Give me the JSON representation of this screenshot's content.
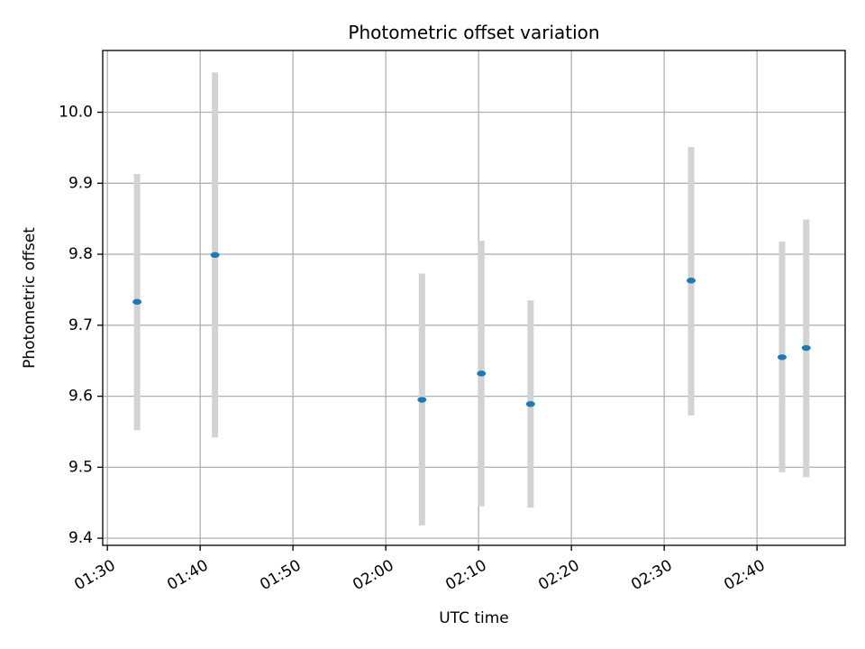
{
  "chart_data": {
    "type": "scatter",
    "title": "Photometric offset variation",
    "xlabel": "UTC time",
    "ylabel": "Photometric offset",
    "grid": true,
    "x_unit": "minutes after 01:30 UTC",
    "xlim": [
      -0.5,
      79.5
    ],
    "ylim": [
      9.39,
      10.087
    ],
    "x_ticks": [
      {
        "value": 0,
        "label": "01:30"
      },
      {
        "value": 10,
        "label": "01:40"
      },
      {
        "value": 20,
        "label": "01:50"
      },
      {
        "value": 30,
        "label": "02:00"
      },
      {
        "value": 40,
        "label": "02:10"
      },
      {
        "value": 50,
        "label": "02:20"
      },
      {
        "value": 60,
        "label": "02:30"
      },
      {
        "value": 70,
        "label": "02:40"
      }
    ],
    "y_ticks": [
      {
        "value": 9.4,
        "label": "9.4"
      },
      {
        "value": 9.5,
        "label": "9.5"
      },
      {
        "value": 9.6,
        "label": "9.6"
      },
      {
        "value": 9.7,
        "label": "9.7"
      },
      {
        "value": 9.8,
        "label": "9.8"
      },
      {
        "value": 9.9,
        "label": "9.9"
      },
      {
        "value": 10.0,
        "label": "10.0"
      }
    ],
    "series": [
      {
        "name": "Photometric offset",
        "point_color": "#1f77b4",
        "errorbar_color": "#d3d3d3",
        "points": [
          {
            "x": 3.2,
            "y": 9.733,
            "err_low": 9.552,
            "err_high": 9.913
          },
          {
            "x": 11.6,
            "y": 9.799,
            "err_low": 9.542,
            "err_high": 10.056
          },
          {
            "x": 33.9,
            "y": 9.595,
            "err_low": 9.418,
            "err_high": 9.773
          },
          {
            "x": 40.3,
            "y": 9.632,
            "err_low": 9.445,
            "err_high": 9.819
          },
          {
            "x": 45.6,
            "y": 9.589,
            "err_low": 9.443,
            "err_high": 9.735
          },
          {
            "x": 62.9,
            "y": 9.763,
            "err_low": 9.573,
            "err_high": 9.951
          },
          {
            "x": 72.7,
            "y": 9.655,
            "err_low": 9.493,
            "err_high": 9.818
          },
          {
            "x": 75.3,
            "y": 9.668,
            "err_low": 9.486,
            "err_high": 9.849
          }
        ]
      }
    ]
  }
}
